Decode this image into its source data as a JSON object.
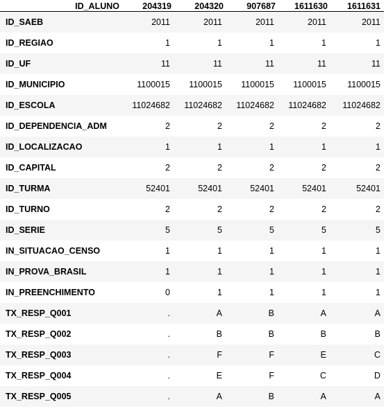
{
  "table": {
    "index_header": "ID_ALUNO",
    "columns": [
      "204319",
      "204320",
      "907687",
      "1611630",
      "1611631"
    ],
    "rows": [
      {
        "label": "ID_SAEB",
        "values": [
          "2011",
          "2011",
          "2011",
          "2011",
          "2011"
        ]
      },
      {
        "label": "ID_REGIAO",
        "values": [
          "1",
          "1",
          "1",
          "1",
          "1"
        ]
      },
      {
        "label": "ID_UF",
        "values": [
          "11",
          "11",
          "11",
          "11",
          "11"
        ]
      },
      {
        "label": "ID_MUNICIPIO",
        "values": [
          "1100015",
          "1100015",
          "1100015",
          "1100015",
          "1100015"
        ]
      },
      {
        "label": "ID_ESCOLA",
        "values": [
          "11024682",
          "11024682",
          "11024682",
          "11024682",
          "11024682"
        ]
      },
      {
        "label": "ID_DEPENDENCIA_ADM",
        "values": [
          "2",
          "2",
          "2",
          "2",
          "2"
        ]
      },
      {
        "label": "ID_LOCALIZACAO",
        "values": [
          "1",
          "1",
          "1",
          "1",
          "1"
        ]
      },
      {
        "label": "ID_CAPITAL",
        "values": [
          "2",
          "2",
          "2",
          "2",
          "2"
        ]
      },
      {
        "label": "ID_TURMA",
        "values": [
          "52401",
          "52401",
          "52401",
          "52401",
          "52401"
        ]
      },
      {
        "label": "ID_TURNO",
        "values": [
          "2",
          "2",
          "2",
          "2",
          "2"
        ]
      },
      {
        "label": "ID_SERIE",
        "values": [
          "5",
          "5",
          "5",
          "5",
          "5"
        ]
      },
      {
        "label": "IN_SITUACAO_CENSO",
        "values": [
          "1",
          "1",
          "1",
          "1",
          "1"
        ]
      },
      {
        "label": "IN_PROVA_BRASIL",
        "values": [
          "1",
          "1",
          "1",
          "1",
          "1"
        ]
      },
      {
        "label": "IN_PREENCHIMENTO",
        "values": [
          "0",
          "1",
          "1",
          "1",
          "1"
        ]
      },
      {
        "label": "TX_RESP_Q001",
        "values": [
          ".",
          "A",
          "B",
          "A",
          "A"
        ]
      },
      {
        "label": "TX_RESP_Q002",
        "values": [
          ".",
          "B",
          "B",
          "B",
          "B"
        ]
      },
      {
        "label": "TX_RESP_Q003",
        "values": [
          ".",
          "F",
          "F",
          "E",
          "C"
        ]
      },
      {
        "label": "TX_RESP_Q004",
        "values": [
          ".",
          "E",
          "F",
          "C",
          "D"
        ]
      },
      {
        "label": "TX_RESP_Q005",
        "values": [
          ".",
          "A",
          "B",
          "A",
          "A"
        ]
      }
    ]
  }
}
